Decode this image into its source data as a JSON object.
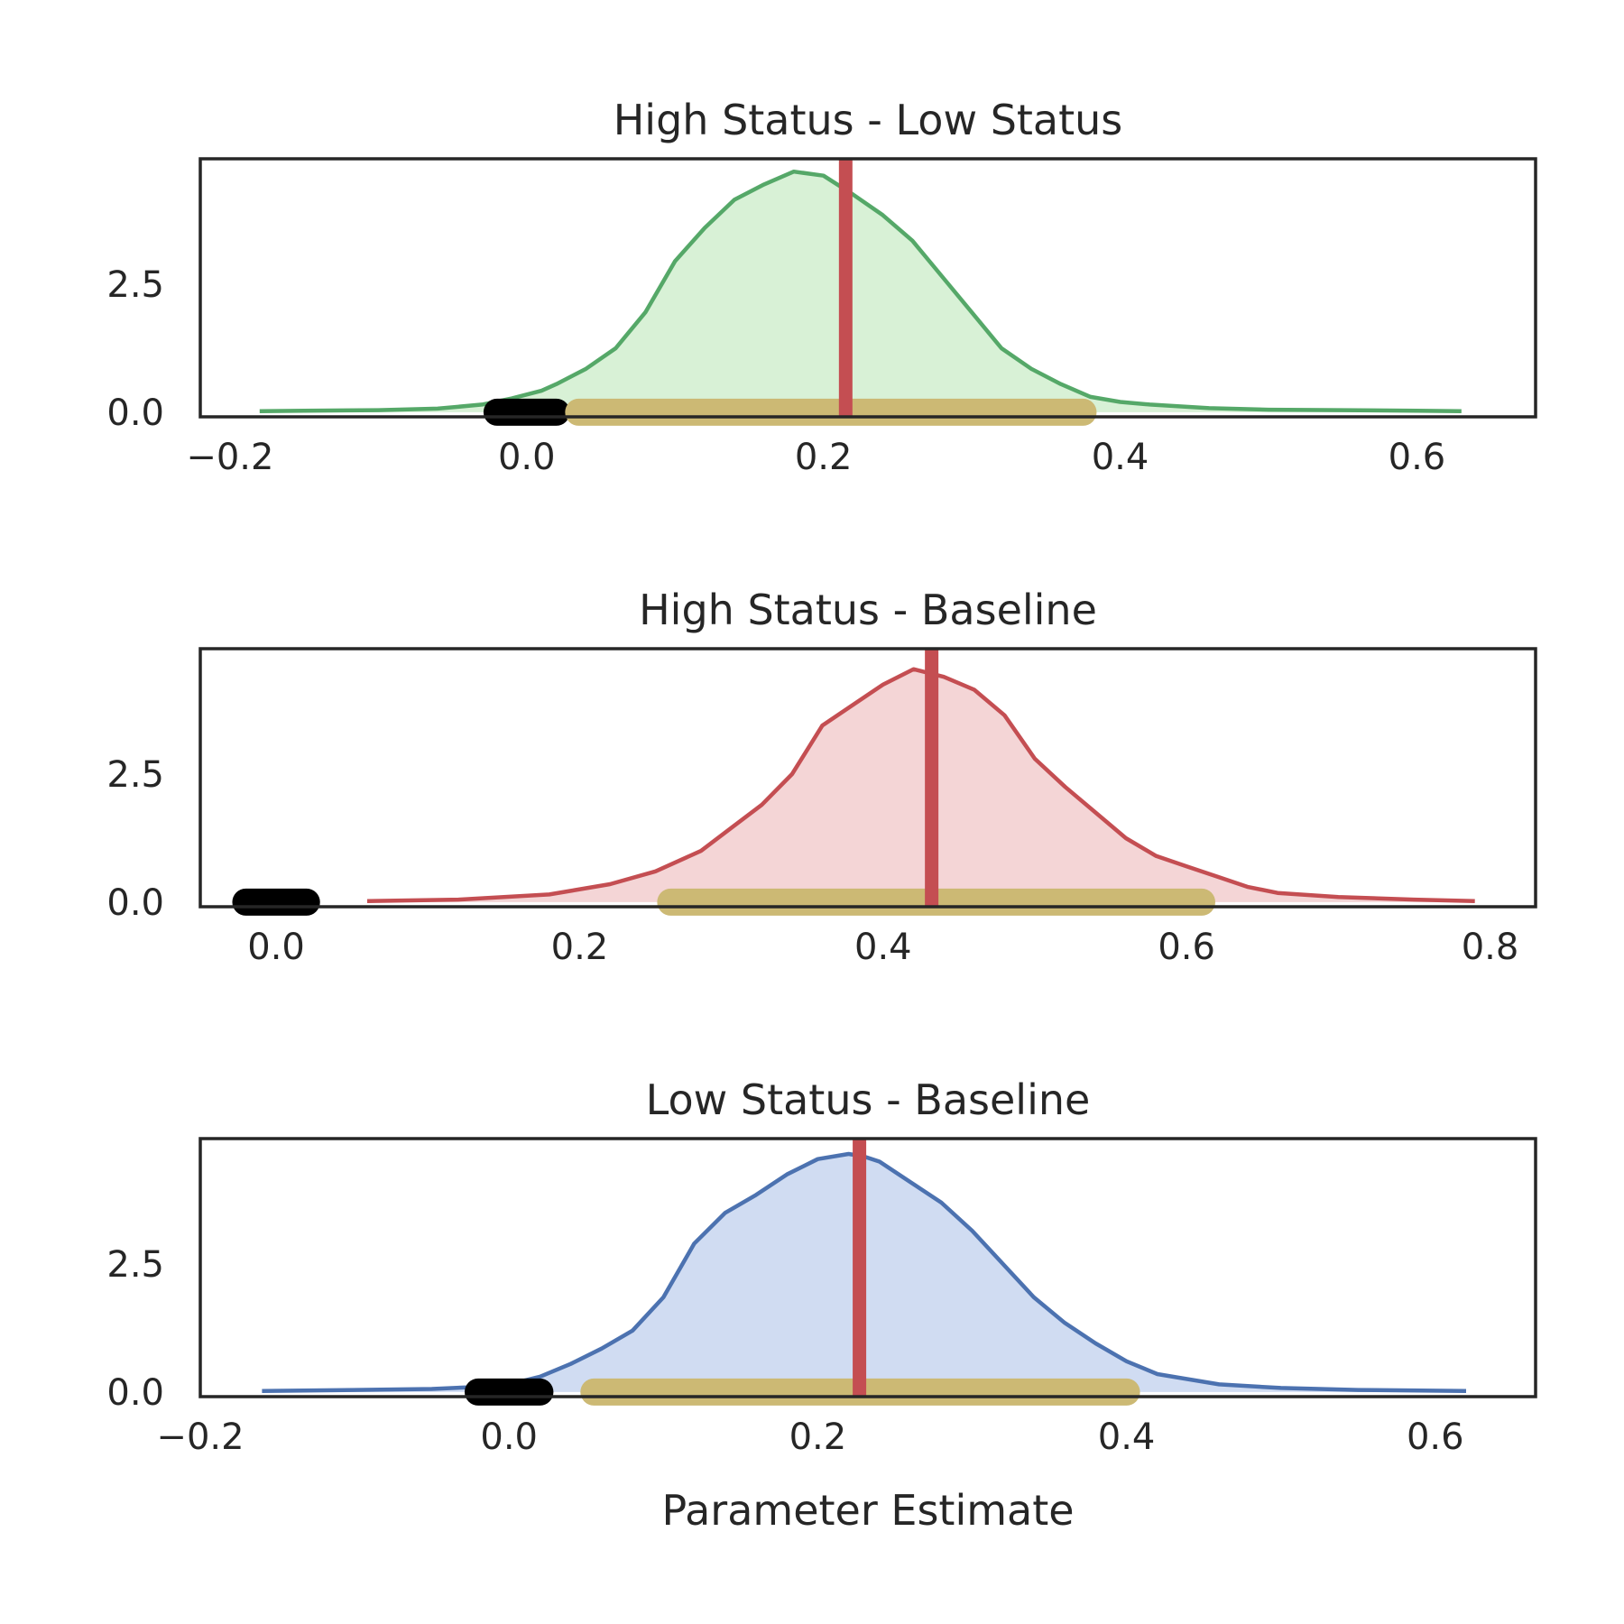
{
  "chart_data": [
    {
      "type": "area",
      "title": "High Status - Low Status",
      "xlabel": "",
      "ylabel": "",
      "xlim": [
        -0.22,
        0.68
      ],
      "ylim": [
        -0.09,
        4.95
      ],
      "xticks": [
        -0.2,
        0.0,
        0.2,
        0.4,
        0.6
      ],
      "xtick_labels": [
        "−0.2",
        "0.0",
        "0.2",
        "0.4",
        "0.6"
      ],
      "yticks": [
        0.0,
        2.5
      ],
      "ytick_labels": [
        "0.0",
        "2.5"
      ],
      "grid": false,
      "line_color": "#55a868",
      "fill_color": "#d8f1d6",
      "density": {
        "x": [
          -0.18,
          -0.15,
          -0.1,
          -0.06,
          -0.03,
          -0.01,
          0.01,
          0.02,
          0.04,
          0.06,
          0.08,
          0.1,
          0.12,
          0.14,
          0.16,
          0.18,
          0.2,
          0.22,
          0.24,
          0.26,
          0.28,
          0.3,
          0.32,
          0.34,
          0.36,
          0.38,
          0.4,
          0.42,
          0.46,
          0.5,
          0.55,
          0.6,
          0.63
        ],
        "y": [
          0.02,
          0.03,
          0.04,
          0.07,
          0.15,
          0.27,
          0.42,
          0.55,
          0.85,
          1.25,
          1.95,
          2.95,
          3.6,
          4.15,
          4.45,
          4.7,
          4.62,
          4.25,
          3.85,
          3.35,
          2.65,
          1.95,
          1.25,
          0.85,
          0.55,
          0.3,
          0.2,
          0.15,
          0.08,
          0.05,
          0.04,
          0.03,
          0.02
        ]
      },
      "estimate": 0.215,
      "interval": [
        0.035,
        0.375
      ],
      "rope": [
        -0.02,
        0.02
      ]
    },
    {
      "type": "area",
      "title": "High Status - Baseline",
      "xlabel": "",
      "ylabel": "",
      "xlim": [
        -0.05,
        0.83
      ],
      "ylim": [
        -0.09,
        4.95
      ],
      "xticks": [
        0.0,
        0.2,
        0.4,
        0.6,
        0.8
      ],
      "xtick_labels": [
        "0.0",
        "0.2",
        "0.4",
        "0.6",
        "0.8"
      ],
      "yticks": [
        0.0,
        2.5
      ],
      "ytick_labels": [
        "0.0",
        "2.5"
      ],
      "grid": false,
      "line_color": "#c44e52",
      "fill_color": "#f4d5d6",
      "density": {
        "x": [
          0.06,
          0.12,
          0.18,
          0.22,
          0.25,
          0.28,
          0.3,
          0.32,
          0.34,
          0.36,
          0.38,
          0.4,
          0.42,
          0.44,
          0.46,
          0.48,
          0.5,
          0.52,
          0.54,
          0.56,
          0.58,
          0.6,
          0.62,
          0.64,
          0.66,
          0.7,
          0.75,
          0.79
        ],
        "y": [
          0.02,
          0.05,
          0.15,
          0.35,
          0.6,
          1.0,
          1.45,
          1.9,
          2.5,
          3.45,
          3.85,
          4.25,
          4.55,
          4.4,
          4.15,
          3.65,
          2.8,
          2.25,
          1.75,
          1.25,
          0.9,
          0.7,
          0.5,
          0.3,
          0.18,
          0.1,
          0.05,
          0.02
        ]
      },
      "estimate": 0.432,
      "interval": [
        0.26,
        0.61
      ],
      "rope": [
        -0.02,
        0.02
      ]
    },
    {
      "type": "area",
      "title": "Low Status - Baseline",
      "xlabel": "Parameter Estimate",
      "ylabel": "",
      "xlim": [
        -0.2,
        0.665
      ],
      "ylim": [
        -0.09,
        4.95
      ],
      "xticks": [
        -0.2,
        0.0,
        0.2,
        0.4,
        0.6
      ],
      "xtick_labels": [
        "−0.2",
        "0.0",
        "0.2",
        "0.4",
        "0.6"
      ],
      "yticks": [
        0.0,
        2.5
      ],
      "ytick_labels": [
        "0.0",
        "2.5"
      ],
      "grid": false,
      "line_color": "#4c72b0",
      "fill_color": "#d0dcf2",
      "density": {
        "x": [
          -0.16,
          -0.1,
          -0.05,
          -0.02,
          0.0,
          0.02,
          0.04,
          0.06,
          0.08,
          0.1,
          0.12,
          0.14,
          0.16,
          0.18,
          0.2,
          0.22,
          0.23,
          0.24,
          0.26,
          0.28,
          0.3,
          0.32,
          0.34,
          0.36,
          0.38,
          0.4,
          0.42,
          0.46,
          0.5,
          0.55,
          0.62
        ],
        "y": [
          0.02,
          0.04,
          0.06,
          0.1,
          0.15,
          0.3,
          0.55,
          0.85,
          1.2,
          1.85,
          2.9,
          3.5,
          3.85,
          4.25,
          4.55,
          4.65,
          4.6,
          4.5,
          4.1,
          3.7,
          3.15,
          2.5,
          1.85,
          1.35,
          0.95,
          0.6,
          0.35,
          0.15,
          0.08,
          0.04,
          0.02
        ]
      },
      "estimate": 0.227,
      "interval": [
        0.055,
        0.4
      ],
      "rope": [
        -0.02,
        0.02
      ]
    }
  ]
}
